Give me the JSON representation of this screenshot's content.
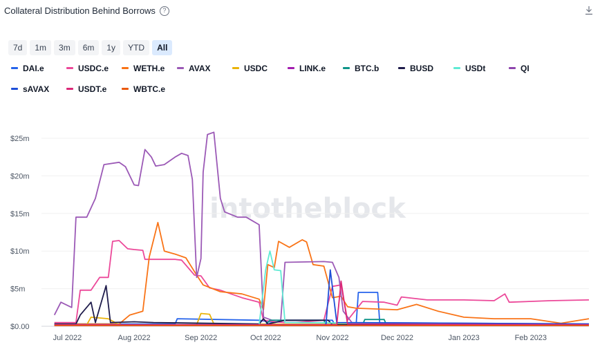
{
  "header": {
    "title": "Collateral Distribution Behind Borrows",
    "help_icon": "question-circle-icon",
    "download_icon": "download-icon"
  },
  "ranges": {
    "items": [
      "7d",
      "1m",
      "3m",
      "6m",
      "1y",
      "YTD",
      "All"
    ],
    "active": "All"
  },
  "watermark": "intotheblock",
  "chart_data": {
    "type": "line",
    "title": "Collateral Distribution Behind Borrows",
    "xlabel": "",
    "ylabel": "",
    "ylim": [
      0,
      25
    ],
    "y_unit": "$M",
    "yticks": [
      0,
      5,
      10,
      15,
      20,
      25
    ],
    "ytick_labels": [
      "$0.00",
      "$5m",
      "$10m",
      "$15m",
      "$20m",
      "$25m"
    ],
    "xlim": [
      "2022-06-19",
      "2023-02-28"
    ],
    "xticks": [
      "2022-07-01",
      "2022-08-01",
      "2022-09-01",
      "2022-10-01",
      "2022-11-01",
      "2022-12-01",
      "2023-01-01",
      "2023-02-01"
    ],
    "xtick_labels": [
      "Jul 2022",
      "Aug 2022",
      "Sep 2022",
      "Oct 2022",
      "Nov 2022",
      "Dec 2022",
      "Jan 2023",
      "Feb 2023"
    ],
    "grid": "horizontal",
    "legend_position": "top",
    "series": [
      {
        "name": "DAI.e",
        "color": "#2563eb",
        "points": [
          [
            "2022-06-25",
            0.3
          ],
          [
            "2022-07-10",
            0.3
          ],
          [
            "2022-08-20",
            0.3
          ],
          [
            "2022-08-21",
            1.0
          ],
          [
            "2022-09-28",
            0.8
          ],
          [
            "2022-10-05",
            0.5
          ],
          [
            "2022-10-10",
            0.8
          ],
          [
            "2022-11-01",
            0.8
          ],
          [
            "2022-11-02",
            0.2
          ],
          [
            "2022-11-12",
            0.2
          ],
          [
            "2022-11-13",
            4.5
          ],
          [
            "2022-11-22",
            4.5
          ],
          [
            "2022-11-23",
            0.2
          ],
          [
            "2023-02-28",
            0.2
          ]
        ]
      },
      {
        "name": "USDC.e",
        "color": "#ec4899",
        "points": [
          [
            "2022-06-25",
            0.5
          ],
          [
            "2022-07-05",
            0.5
          ],
          [
            "2022-07-07",
            4.8
          ],
          [
            "2022-07-12",
            4.8
          ],
          [
            "2022-07-16",
            6.5
          ],
          [
            "2022-07-20",
            6.5
          ],
          [
            "2022-07-22",
            11.3
          ],
          [
            "2022-07-25",
            11.4
          ],
          [
            "2022-07-29",
            10.3
          ],
          [
            "2022-08-01",
            10.2
          ],
          [
            "2022-08-05",
            10.1
          ],
          [
            "2022-08-06",
            8.9
          ],
          [
            "2022-08-20",
            8.9
          ],
          [
            "2022-08-23",
            8.8
          ],
          [
            "2022-08-29",
            6.8
          ],
          [
            "2022-09-01",
            6.7
          ],
          [
            "2022-09-05",
            5.1
          ],
          [
            "2022-09-10",
            4.8
          ],
          [
            "2022-09-20",
            3.8
          ],
          [
            "2022-09-28",
            3.2
          ],
          [
            "2022-09-30",
            0.8
          ],
          [
            "2022-10-05",
            0.6
          ],
          [
            "2022-10-10",
            0.5
          ],
          [
            "2022-10-15",
            0.5
          ],
          [
            "2022-10-28",
            0.8
          ],
          [
            "2022-11-01",
            5.3
          ],
          [
            "2022-11-05",
            5.5
          ],
          [
            "2022-11-08",
            0.8
          ],
          [
            "2022-11-15",
            3.3
          ],
          [
            "2022-11-25",
            3.2
          ],
          [
            "2022-12-01",
            2.8
          ],
          [
            "2022-12-03",
            3.9
          ],
          [
            "2022-12-15",
            3.5
          ],
          [
            "2023-01-01",
            3.5
          ],
          [
            "2023-01-15",
            3.4
          ],
          [
            "2023-01-20",
            4.3
          ],
          [
            "2023-01-22",
            3.2
          ],
          [
            "2023-02-10",
            3.4
          ],
          [
            "2023-02-28",
            3.5
          ]
        ]
      },
      {
        "name": "WETH.e",
        "color": "#f97316",
        "points": [
          [
            "2022-06-25",
            0.3
          ],
          [
            "2022-07-25",
            0.3
          ],
          [
            "2022-07-30",
            1.5
          ],
          [
            "2022-08-05",
            2.0
          ],
          [
            "2022-08-08",
            9.2
          ],
          [
            "2022-08-12",
            13.8
          ],
          [
            "2022-08-15",
            10.0
          ],
          [
            "2022-08-20",
            9.6
          ],
          [
            "2022-08-25",
            9.1
          ],
          [
            "2022-08-30",
            6.8
          ],
          [
            "2022-09-02",
            5.5
          ],
          [
            "2022-09-10",
            4.6
          ],
          [
            "2022-09-20",
            4.3
          ],
          [
            "2022-09-28",
            3.6
          ],
          [
            "2022-09-30",
            2.2
          ],
          [
            "2022-10-02",
            8.2
          ],
          [
            "2022-10-05",
            7.8
          ],
          [
            "2022-10-07",
            11.3
          ],
          [
            "2022-10-12",
            10.5
          ],
          [
            "2022-10-18",
            11.5
          ],
          [
            "2022-10-20",
            11.2
          ],
          [
            "2022-10-23",
            8.2
          ],
          [
            "2022-10-28",
            8.0
          ],
          [
            "2022-11-01",
            3.8
          ],
          [
            "2022-11-05",
            4.0
          ],
          [
            "2022-11-08",
            2.6
          ],
          [
            "2022-11-12",
            2.4
          ],
          [
            "2022-12-01",
            2.2
          ],
          [
            "2022-12-10",
            2.9
          ],
          [
            "2022-12-20",
            2.0
          ],
          [
            "2023-01-01",
            1.2
          ],
          [
            "2023-01-15",
            1.0
          ],
          [
            "2023-02-01",
            1.0
          ],
          [
            "2023-02-15",
            0.4
          ],
          [
            "2023-02-28",
            1.0
          ]
        ]
      },
      {
        "name": "AVAX",
        "color": "#9b59b6",
        "points": [
          [
            "2022-06-25",
            1.5
          ],
          [
            "2022-06-28",
            3.2
          ],
          [
            "2022-07-03",
            2.5
          ],
          [
            "2022-07-05",
            14.5
          ],
          [
            "2022-07-10",
            14.5
          ],
          [
            "2022-07-14",
            17.0
          ],
          [
            "2022-07-18",
            21.5
          ],
          [
            "2022-07-25",
            21.8
          ],
          [
            "2022-07-28",
            21.2
          ],
          [
            "2022-08-01",
            18.8
          ],
          [
            "2022-08-03",
            18.7
          ],
          [
            "2022-08-06",
            23.5
          ],
          [
            "2022-08-09",
            22.5
          ],
          [
            "2022-08-11",
            21.3
          ],
          [
            "2022-08-15",
            21.5
          ],
          [
            "2022-08-20",
            22.5
          ],
          [
            "2022-08-23",
            23.0
          ],
          [
            "2022-08-26",
            22.7
          ],
          [
            "2022-08-28",
            19.5
          ],
          [
            "2022-08-30",
            6.5
          ],
          [
            "2022-09-01",
            9.0
          ],
          [
            "2022-09-02",
            20.5
          ],
          [
            "2022-09-04",
            25.5
          ],
          [
            "2022-09-07",
            25.8
          ],
          [
            "2022-09-10",
            17.0
          ],
          [
            "2022-09-12",
            15.2
          ],
          [
            "2022-09-18",
            14.5
          ],
          [
            "2022-09-22",
            14.5
          ],
          [
            "2022-09-25",
            14.0
          ],
          [
            "2022-09-28",
            13.5
          ],
          [
            "2022-09-30",
            1.2
          ],
          [
            "2022-10-04",
            0.8
          ],
          [
            "2022-10-08",
            0.8
          ],
          [
            "2022-10-10",
            8.5
          ],
          [
            "2022-10-28",
            8.6
          ],
          [
            "2022-11-01",
            8.5
          ],
          [
            "2022-11-04",
            6.5
          ],
          [
            "2022-11-06",
            2.0
          ],
          [
            "2022-11-10",
            0.5
          ],
          [
            "2023-02-28",
            0.3
          ]
        ]
      },
      {
        "name": "USDC",
        "color": "#eab308",
        "points": [
          [
            "2022-06-25",
            0.2
          ],
          [
            "2022-07-10",
            0.2
          ],
          [
            "2022-07-12",
            1.2
          ],
          [
            "2022-07-20",
            1.0
          ],
          [
            "2022-07-25",
            0.2
          ],
          [
            "2022-08-30",
            0.2
          ],
          [
            "2022-09-01",
            1.7
          ],
          [
            "2022-09-05",
            1.6
          ],
          [
            "2022-09-07",
            0.3
          ],
          [
            "2023-02-28",
            0.2
          ]
        ]
      },
      {
        "name": "LINK.e",
        "color": "#a21caf",
        "points": [
          [
            "2022-06-25",
            0.1
          ],
          [
            "2023-02-28",
            0.1
          ]
        ]
      },
      {
        "name": "BTC.b",
        "color": "#0d9488",
        "points": [
          [
            "2022-06-25",
            0.2
          ],
          [
            "2022-10-01",
            0.2
          ],
          [
            "2022-10-03",
            0.8
          ],
          [
            "2022-10-28",
            0.8
          ],
          [
            "2022-10-29",
            0.2
          ],
          [
            "2022-11-15",
            0.2
          ],
          [
            "2022-11-16",
            0.9
          ],
          [
            "2022-11-25",
            0.9
          ],
          [
            "2022-11-26",
            0.2
          ],
          [
            "2023-02-28",
            0.2
          ]
        ]
      },
      {
        "name": "BUSD",
        "color": "#1e1b4b",
        "points": [
          [
            "2022-06-25",
            0.3
          ],
          [
            "2022-07-05",
            0.3
          ],
          [
            "2022-07-07",
            1.5
          ],
          [
            "2022-07-12",
            3.2
          ],
          [
            "2022-07-14",
            0.5
          ],
          [
            "2022-07-19",
            5.4
          ],
          [
            "2022-07-21",
            0.5
          ],
          [
            "2022-08-01",
            0.6
          ],
          [
            "2022-08-10",
            0.5
          ],
          [
            "2022-09-28",
            0.3
          ],
          [
            "2022-09-30",
            1.0
          ],
          [
            "2022-10-02",
            0.3
          ],
          [
            "2022-10-10",
            0.8
          ],
          [
            "2022-10-30",
            0.8
          ],
          [
            "2022-11-01",
            0.2
          ],
          [
            "2023-02-28",
            0.2
          ]
        ]
      },
      {
        "name": "USDt",
        "color": "#5eead4",
        "points": [
          [
            "2022-06-25",
            0.2
          ],
          [
            "2022-09-28",
            0.2
          ],
          [
            "2022-10-01",
            7.5
          ],
          [
            "2022-10-03",
            10.0
          ],
          [
            "2022-10-05",
            7.5
          ],
          [
            "2022-10-08",
            7.4
          ],
          [
            "2022-10-10",
            0.5
          ],
          [
            "2023-02-28",
            0.2
          ]
        ]
      },
      {
        "name": "QI",
        "color": "#8e44ad",
        "points": [
          [
            "2022-06-25",
            0.1
          ],
          [
            "2023-02-28",
            0.1
          ]
        ]
      },
      {
        "name": "sAVAX",
        "color": "#1d4ed8",
        "points": [
          [
            "2022-06-25",
            0.2
          ],
          [
            "2022-10-29",
            0.2
          ],
          [
            "2022-10-31",
            7.5
          ],
          [
            "2022-11-03",
            0.5
          ],
          [
            "2023-02-28",
            0.3
          ]
        ]
      },
      {
        "name": "USDT.e",
        "color": "#db2777",
        "points": [
          [
            "2022-06-25",
            0.2
          ],
          [
            "2022-11-03",
            0.2
          ],
          [
            "2022-11-05",
            6.0
          ],
          [
            "2022-11-08",
            0.3
          ],
          [
            "2023-02-28",
            0.2
          ]
        ]
      },
      {
        "name": "WBTC.e",
        "color": "#ea580c",
        "points": [
          [
            "2022-06-25",
            0.1
          ],
          [
            "2023-02-28",
            0.1
          ]
        ]
      }
    ]
  }
}
